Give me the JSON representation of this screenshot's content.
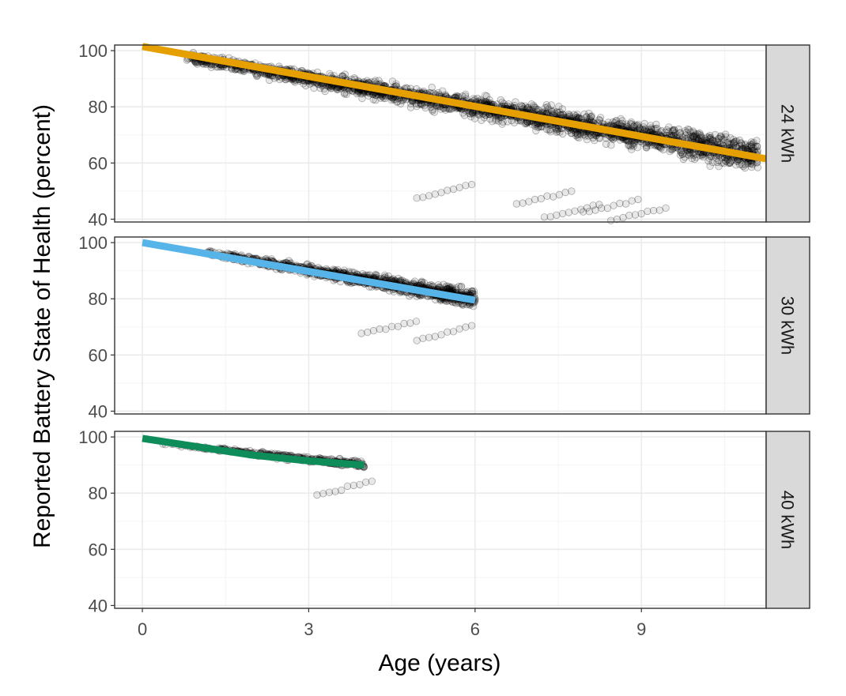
{
  "chart_data": {
    "type": "scatter",
    "xlabel": "Age (years)",
    "ylabel": "Reported Battery State of Health (percent)",
    "xlim": [
      -0.5,
      11.25
    ],
    "ylim": [
      39,
      102
    ],
    "x_ticks": [
      "0",
      "3",
      "6",
      "9"
    ],
    "y_ticks": [
      "40",
      "60",
      "80",
      "100"
    ],
    "grid": true,
    "legend": "none",
    "point_color": "#000000",
    "panels": [
      {
        "strip_label": "24 kWh",
        "fit_color": "#E69F00",
        "fit_line": {
          "x": [
            0,
            11.25
          ],
          "y": [
            101.5,
            61.5
          ]
        },
        "points": {
          "x_range": [
            0.8,
            11.1
          ],
          "trend": {
            "x": [
              1,
              11
            ],
            "y": [
              97,
              63
            ]
          },
          "spread": 9,
          "outliers": [
            {
              "x": 5.5,
              "y": 50
            },
            {
              "x": 7.8,
              "y": 43
            },
            {
              "x": 9.0,
              "y": 42
            },
            {
              "x": 7.3,
              "y": 48
            },
            {
              "x": 8.5,
              "y": 45
            }
          ]
        }
      },
      {
        "strip_label": "30 kWh",
        "fit_color": "#56B4E9",
        "fit_line": {
          "x": [
            0,
            6
          ],
          "y": [
            100,
            79.5
          ]
        },
        "points": {
          "x_range": [
            1.0,
            6.0
          ],
          "trend": {
            "x": [
              1,
              6
            ],
            "y": [
              97,
              80
            ]
          },
          "spread": 5,
          "outliers": [
            {
              "x": 5.5,
              "y": 68
            },
            {
              "x": 4.5,
              "y": 70
            }
          ]
        }
      },
      {
        "strip_label": "40 kWh",
        "fit_color": "#0E8C5A",
        "fit_line": {
          "x": [
            0,
            1,
            2,
            3,
            4
          ],
          "y": [
            99.5,
            96.5,
            93.5,
            91.5,
            90
          ]
        },
        "points": {
          "x_range": [
            0.2,
            4.0
          ],
          "trend": {
            "x": [
              0.2,
              4
            ],
            "y": [
              98,
              90
            ]
          },
          "spread": 2,
          "outliers": [
            {
              "x": 3.7,
              "y": 82
            }
          ]
        }
      }
    ]
  }
}
